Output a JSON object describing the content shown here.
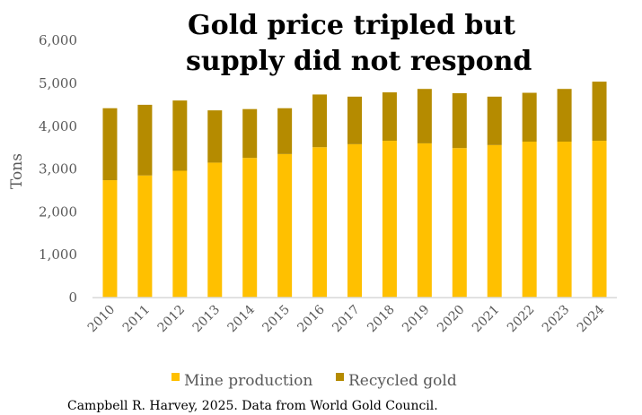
{
  "chart_data": {
    "type": "bar",
    "stacked": true,
    "title_lines": [
      "Gold price tripled but",
      "supply did not respond"
    ],
    "xlabel": "",
    "ylabel": "Tons",
    "ylim": [
      0,
      6000
    ],
    "yticks": [
      0,
      1000,
      2000,
      3000,
      4000,
      5000,
      6000
    ],
    "ytick_labels": [
      "0",
      "1,000",
      "2,000",
      "3,000",
      "4,000",
      "5,000",
      "6,000"
    ],
    "grid": false,
    "categories": [
      "2010",
      "2011",
      "2012",
      "2013",
      "2014",
      "2015",
      "2016",
      "2017",
      "2018",
      "2019",
      "2020",
      "2021",
      "2022",
      "2023",
      "2024"
    ],
    "series": [
      {
        "name": "Mine production",
        "color": "#FFC000",
        "values": [
          2740,
          2850,
          2960,
          3150,
          3260,
          3350,
          3510,
          3580,
          3660,
          3600,
          3490,
          3560,
          3640,
          3640,
          3660
        ]
      },
      {
        "name": "Recycled gold",
        "color": "#B58B00",
        "values": [
          1680,
          1650,
          1640,
          1220,
          1140,
          1070,
          1230,
          1110,
          1130,
          1270,
          1280,
          1130,
          1140,
          1230,
          1380
        ]
      }
    ],
    "legend_position": "bottom",
    "caption": "Campbell R. Harvey, 2025. Data from World Gold Council."
  }
}
